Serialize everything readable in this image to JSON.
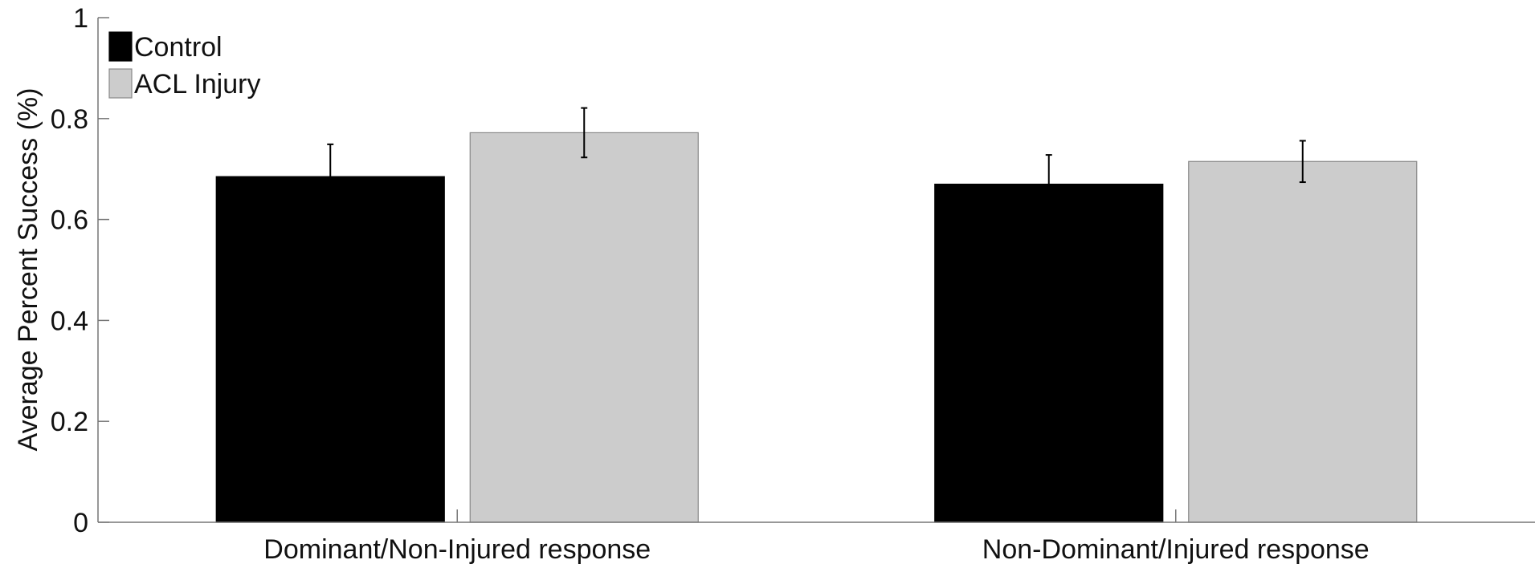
{
  "chart_data": {
    "type": "bar",
    "title": "",
    "xlabel": "",
    "ylabel": "Average Percent Success (%)",
    "ylim": [
      0,
      1
    ],
    "yticks": [
      0,
      0.2,
      0.4,
      0.6,
      0.8,
      1
    ],
    "ytick_labels": [
      "0",
      "0.2",
      "0.4",
      "0.6",
      "0.8",
      "1"
    ],
    "categories": [
      "Dominant/Non-Injured response",
      "Non-Dominant/Injured response"
    ],
    "series": [
      {
        "name": "Control",
        "color": "#000000",
        "values": [
          0.685,
          0.67
        ],
        "errors": [
          0.064,
          0.058
        ]
      },
      {
        "name": "ACL Injury",
        "color": "#cccccc",
        "values": [
          0.772,
          0.715
        ],
        "errors": [
          0.049,
          0.041
        ]
      }
    ],
    "grid": false,
    "legend_position": "top-left"
  }
}
